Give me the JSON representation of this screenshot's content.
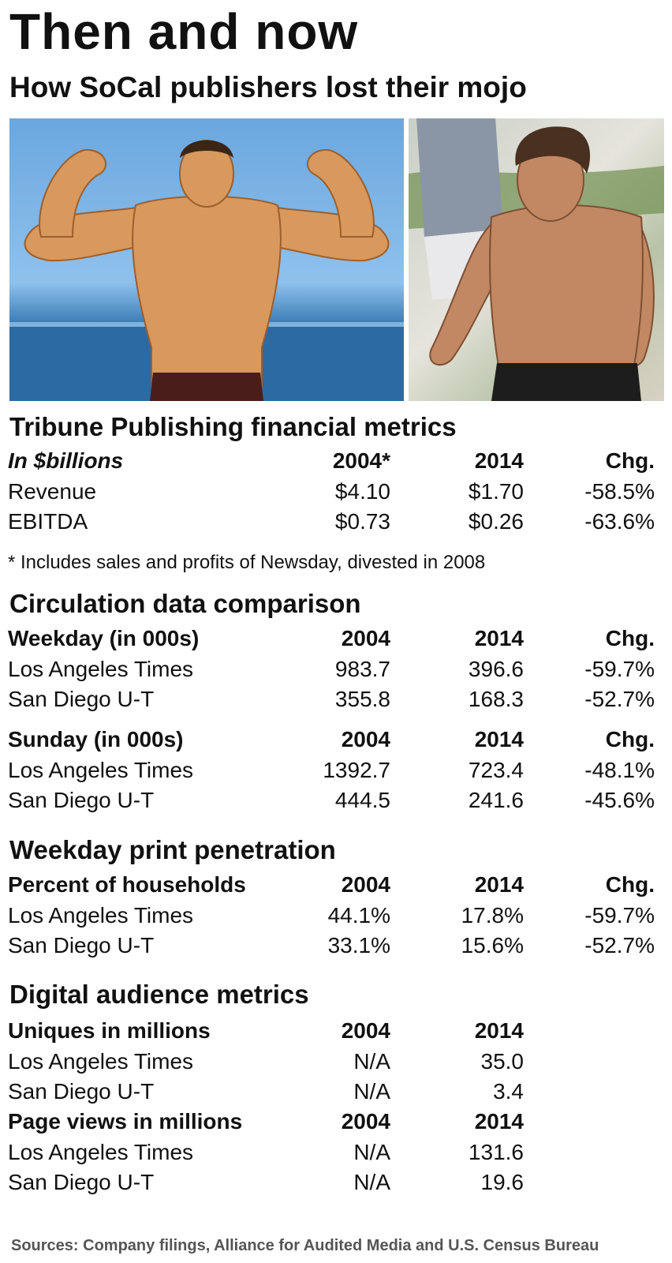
{
  "header": {
    "title": "Then and now",
    "subtitle": "How SoCal publishers lost their mojo"
  },
  "photos": {
    "left": "arnold-young-flexing-photo",
    "right": "arnold-older-shirtless-photo"
  },
  "tribune": {
    "title": "Tribune Publishing financial metrics",
    "headers": [
      "In $billions",
      "2004*",
      "2014",
      "Chg."
    ],
    "rows": [
      [
        "Revenue",
        "$4.10",
        "$1.70",
        "-58.5%"
      ],
      [
        "EBITDA",
        "$0.73",
        "$0.26",
        "-63.6%"
      ]
    ],
    "footnote": "* Includes sales and profits of Newsday, divested in 2008"
  },
  "circulation": {
    "title": "Circulation data comparison",
    "weekday_headers": [
      "Weekday (in 000s)",
      "2004",
      "2014",
      "Chg."
    ],
    "weekday_rows": [
      [
        "Los Angeles Times",
        "983.7",
        "396.6",
        "-59.7%"
      ],
      [
        "San Diego U-T",
        "355.8",
        "168.3",
        "-52.7%"
      ]
    ],
    "sunday_headers": [
      "Sunday (in 000s)",
      "2004",
      "2014",
      "Chg."
    ],
    "sunday_rows": [
      [
        "Los Angeles Times",
        "1392.7",
        "723.4",
        "-48.1%"
      ],
      [
        "San Diego U-T",
        "444.5",
        "241.6",
        "-45.6%"
      ]
    ]
  },
  "penetration": {
    "title": "Weekday print penetration",
    "headers": [
      "Percent of households",
      "2004",
      "2014",
      "Chg."
    ],
    "rows": [
      [
        "Los Angeles Times",
        "44.1%",
        "17.8%",
        "-59.7%"
      ],
      [
        "San Diego U-T",
        "33.1%",
        "15.6%",
        "-52.7%"
      ]
    ]
  },
  "digital": {
    "title": "Digital audience metrics",
    "uniques_headers": [
      "Uniques in millions",
      "2004",
      "2014"
    ],
    "uniques_rows": [
      [
        "Los Angeles Times",
        "N/A",
        "35.0"
      ],
      [
        "San Diego U-T",
        "N/A",
        "3.4"
      ]
    ],
    "pageviews_headers": [
      "Page views in millions",
      "2004",
      "2014"
    ],
    "pageviews_rows": [
      [
        "Los Angeles Times",
        "N/A",
        "131.6"
      ],
      [
        "San Diego U-T",
        "N/A",
        "19.6"
      ]
    ]
  },
  "sources": "Sources: Company filings, Alliance for Audited Media and U.S. Census Bureau"
}
